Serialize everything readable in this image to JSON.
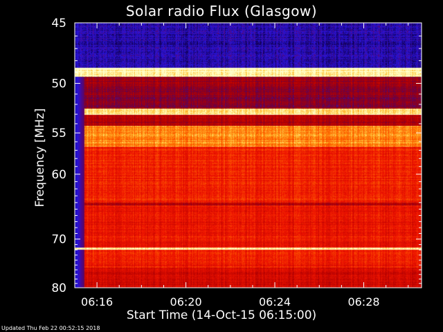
{
  "chart_data": {
    "type": "heatmap",
    "title": "Solar radio Flux (Glasgow)",
    "xlabel": "Start Time (14-Oct-15 06:15:00)",
    "ylabel": "Frequency [MHz]",
    "x_ticks": [
      "06:16",
      "06:20",
      "06:24",
      "06:28"
    ],
    "x_tick_minutes": [
      16,
      20,
      24,
      28
    ],
    "xlim_minutes": [
      15,
      30.6
    ],
    "y_ticks": [
      45,
      50,
      55,
      60,
      70,
      80
    ],
    "ylim": [
      45,
      80
    ],
    "y_scale": "reciprocal",
    "colormap": "blue-red-yellow",
    "intensity_bands": [
      {
        "f_start": 45.0,
        "f_end": 48.6,
        "level": 0.08
      },
      {
        "f_start": 48.6,
        "f_end": 49.4,
        "level": 1.0
      },
      {
        "f_start": 49.4,
        "f_end": 50.2,
        "level": 0.35
      },
      {
        "f_start": 50.2,
        "f_end": 52.4,
        "level": 0.3
      },
      {
        "f_start": 52.4,
        "f_end": 53.0,
        "level": 0.95
      },
      {
        "f_start": 53.0,
        "f_end": 54.2,
        "level": 0.4
      },
      {
        "f_start": 54.2,
        "f_end": 56.5,
        "level": 0.82
      },
      {
        "f_start": 56.5,
        "f_end": 64.0,
        "level": 0.62
      },
      {
        "f_start": 64.0,
        "f_end": 64.4,
        "level": 0.4
      },
      {
        "f_start": 64.4,
        "f_end": 71.5,
        "level": 0.58
      },
      {
        "f_start": 71.5,
        "f_end": 71.9,
        "level": 1.0
      },
      {
        "f_start": 71.9,
        "f_end": 75.5,
        "level": 0.6
      },
      {
        "f_start": 75.5,
        "f_end": 80.0,
        "level": 0.5
      }
    ]
  },
  "footer": "Updated Thu Feb 22 00:52:15 2018"
}
